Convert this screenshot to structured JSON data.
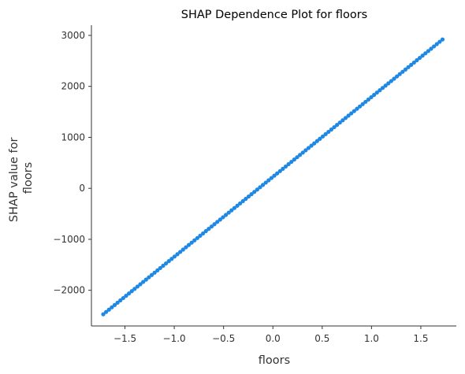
{
  "chart_data": {
    "type": "scatter",
    "title": "SHAP Dependence Plot for floors",
    "xlabel": "floors",
    "ylabel": [
      "SHAP value for",
      "floors"
    ],
    "xlim": [
      -1.84,
      1.86
    ],
    "ylim": [
      -2700,
      3200
    ],
    "xticks": [
      -1.5,
      -1.0,
      -0.5,
      0.0,
      0.5,
      1.0,
      1.5
    ],
    "xtick_labels": [
      "−1.5",
      "−1.0",
      "−0.5",
      "0.0",
      "0.5",
      "1.0",
      "1.5"
    ],
    "yticks": [
      -2000,
      -1000,
      0,
      1000,
      2000,
      3000
    ],
    "ytick_labels": [
      "−2000",
      "−1000",
      "0",
      "1000",
      "2000",
      "3000"
    ],
    "series": [
      {
        "color": "#1e88e5",
        "points": {
          "x_min": -1.72,
          "x_max": 1.72,
          "y_at_x_min": -2470,
          "y_at_x_max": 2920,
          "count": 120
        }
      }
    ],
    "grid": false,
    "spines": [
      "left",
      "bottom"
    ]
  }
}
